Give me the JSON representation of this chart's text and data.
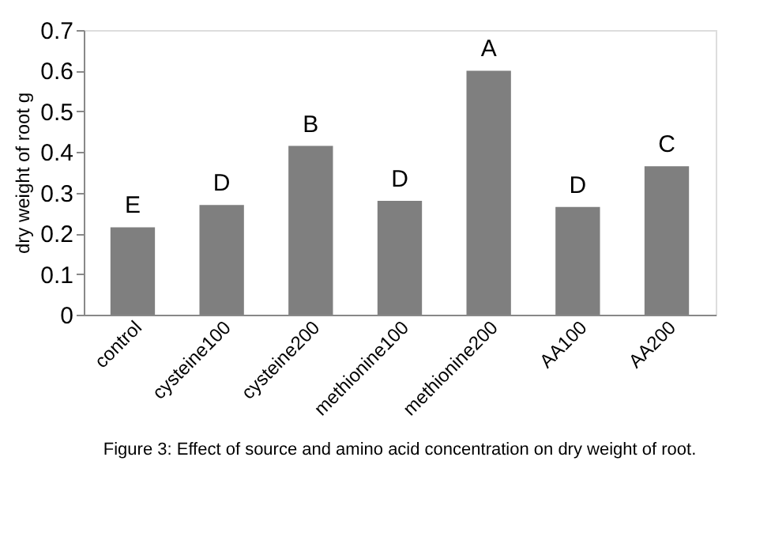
{
  "chart_data": {
    "type": "bar",
    "ylabel": "dry weight of root g",
    "categories": [
      "control",
      "cysteine100",
      "cysteine200",
      "methionine100",
      "methionine200",
      "AA100",
      "AA200"
    ],
    "values": [
      0.215,
      0.27,
      0.415,
      0.28,
      0.6,
      0.265,
      0.365
    ],
    "color": "#7f7f7f",
    "ylim": [
      0,
      0.7
    ],
    "yticks": [
      0,
      0.1,
      0.2,
      0.3,
      0.4,
      0.5,
      0.6,
      0.7
    ],
    "grid": false,
    "annotations": [
      {
        "text": "E",
        "x": "control",
        "y": 0.215
      },
      {
        "text": "D",
        "x": "cysteine100",
        "y": 0.27
      },
      {
        "text": "B",
        "x": "cysteine200",
        "y": 0.415
      },
      {
        "text": "D",
        "x": "methionine100",
        "y": 0.28
      },
      {
        "text": "A",
        "x": "methionine200",
        "y": 0.6
      },
      {
        "text": "D",
        "x": "AA100",
        "y": 0.265
      },
      {
        "text": "C",
        "x": "AA200",
        "y": 0.365
      },
      "Figure 3: Effect of source and amino acid concentration on dry weight of root."
    ]
  }
}
